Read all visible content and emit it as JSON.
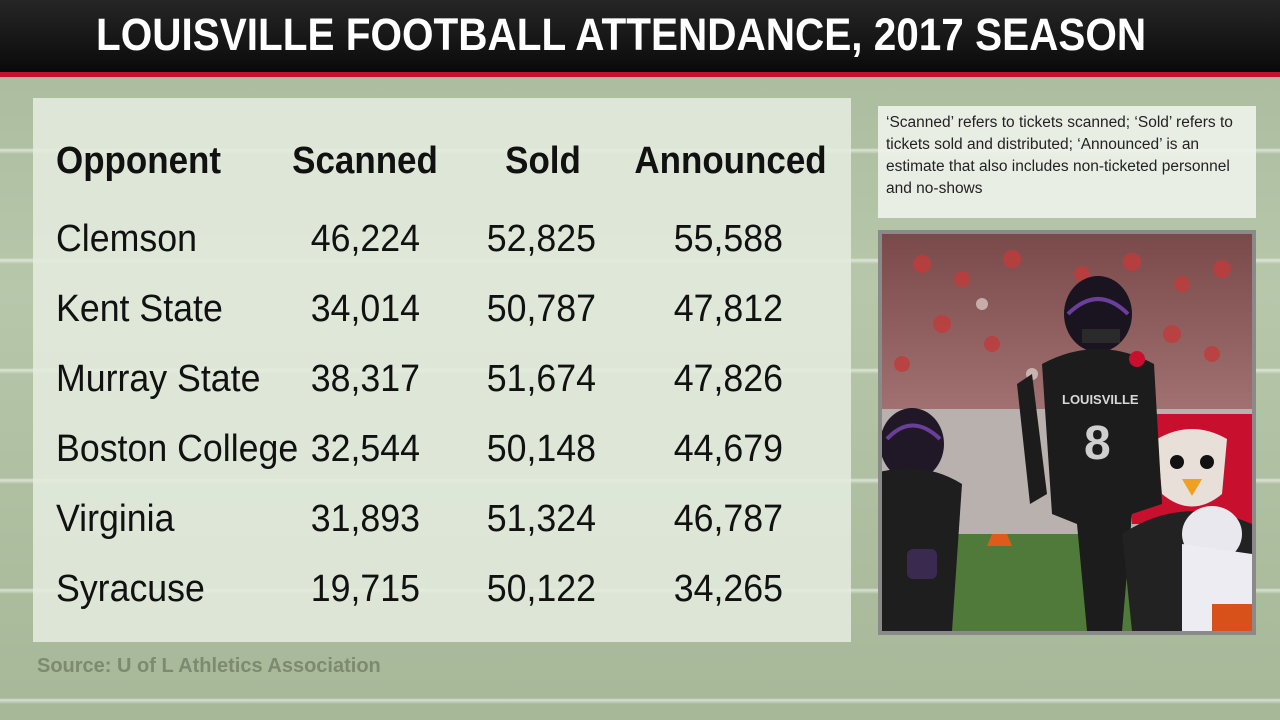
{
  "title": "LOUISVILLE FOOTBALL ATTENDANCE, 2017 SEASON",
  "note": "‘Scanned’ refers to tickets scanned; ‘Sold’ refers to tickets sold and distributed; ‘Announced’ is an estimate that also includes non-ticketed personnel and no-shows",
  "source": "Source: U of L Athletics Association",
  "photo": {
    "jersey_text": "LOUISVILLE",
    "jersey_number": "8"
  },
  "colors": {
    "accent": "#c8102e",
    "titlebar": "#111111",
    "text": "#111111"
  },
  "chart_data": {
    "type": "table",
    "title": "LOUISVILLE FOOTBALL ATTENDANCE, 2017 SEASON",
    "columns": [
      "Opponent",
      "Scanned",
      "Sold",
      "Announced"
    ],
    "rows": [
      [
        "Clemson",
        "46,224",
        "52,825",
        "55,588"
      ],
      [
        "Kent State",
        "34,014",
        "50,787",
        "47,812"
      ],
      [
        "Murray State",
        "38,317",
        "51,674",
        "47,826"
      ],
      [
        "Boston College",
        "32,544",
        "50,148",
        "44,679"
      ],
      [
        "Virginia",
        "31,893",
        "51,324",
        "46,787"
      ],
      [
        "Syracuse",
        "19,715",
        "50,122",
        "34,265"
      ]
    ]
  }
}
